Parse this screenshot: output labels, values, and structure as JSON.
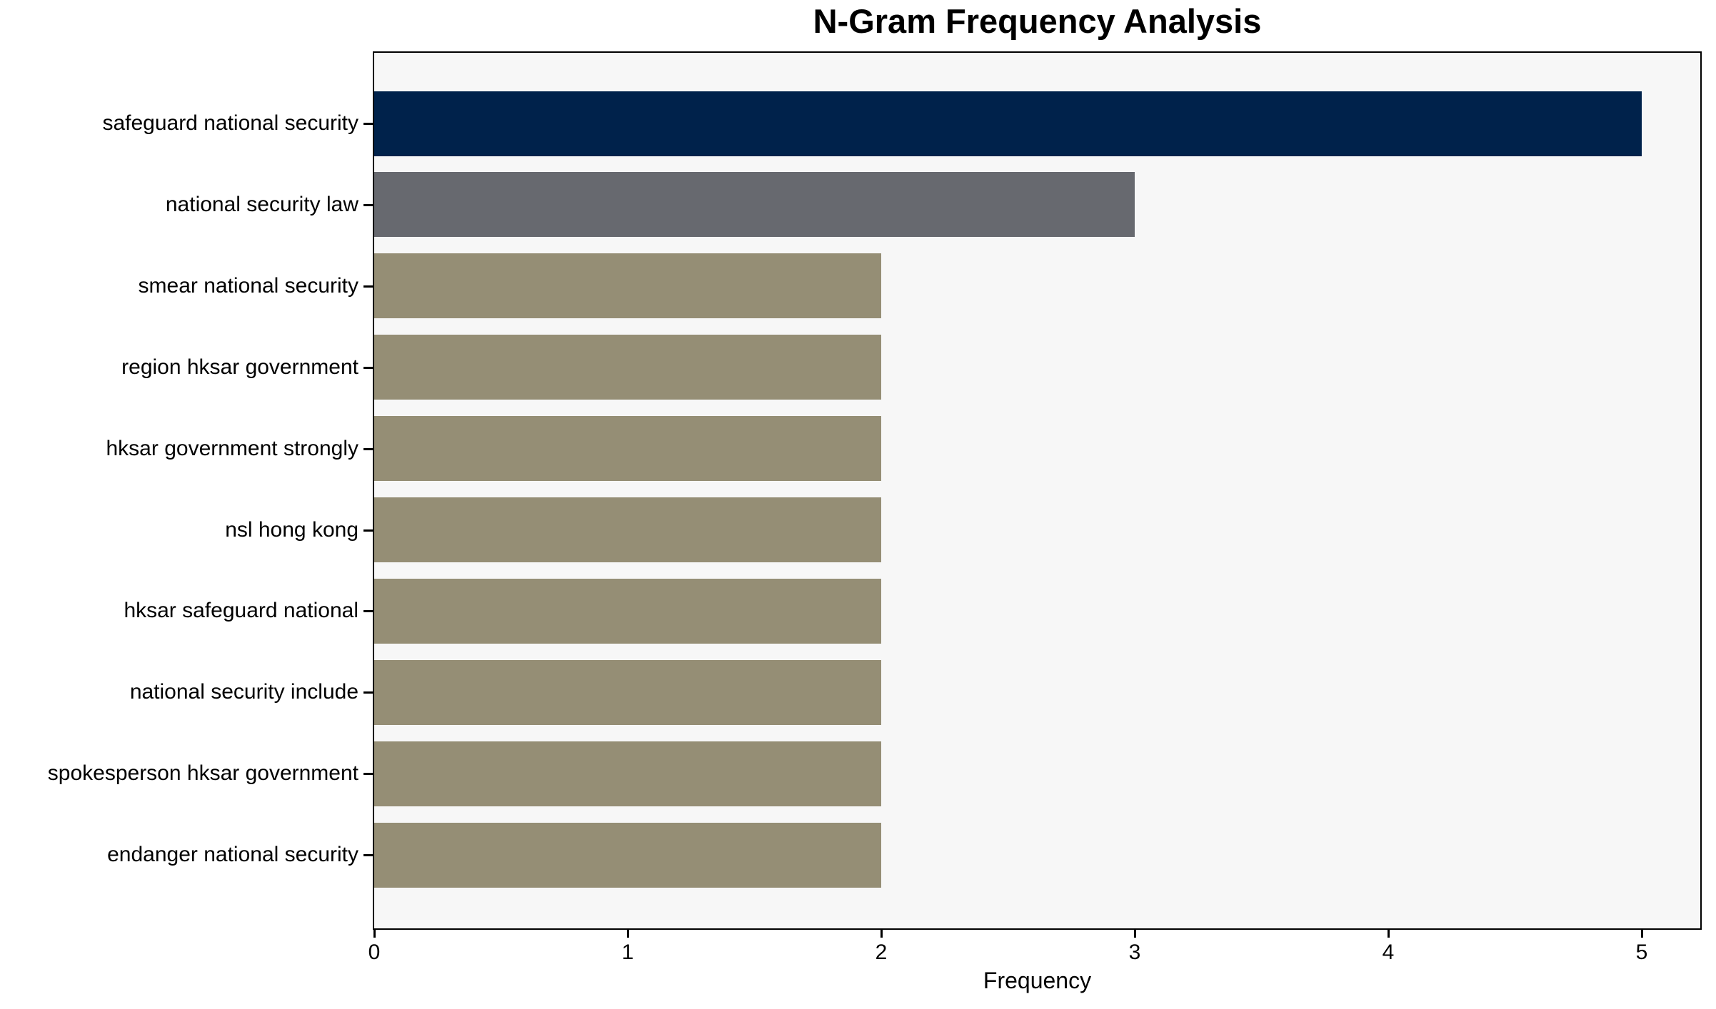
{
  "figure": {
    "background": "#FFFFFF"
  },
  "chart_data": {
    "type": "bar",
    "orientation": "horizontal",
    "title": "N-Gram Frequency Analysis",
    "xlabel": "Frequency",
    "ylabel": "",
    "categories": [
      "safeguard national security",
      "national security law",
      "smear national security",
      "region hksar government",
      "hksar government strongly",
      "nsl hong kong",
      "hksar safeguard national",
      "national security include",
      "spokesperson hksar government",
      "endanger national security"
    ],
    "values": [
      5,
      3,
      2,
      2,
      2,
      2,
      2,
      2,
      2,
      2
    ],
    "bar_colors": [
      "#00224B",
      "#67696F",
      "#958E75",
      "#958E75",
      "#958E75",
      "#958E75",
      "#958E75",
      "#958E75",
      "#958E75",
      "#958E75"
    ],
    "xlim": [
      0,
      5.25
    ],
    "xticks": [
      0,
      1,
      2,
      3,
      4,
      5
    ],
    "xtick_labels": [
      "0",
      "1",
      "2",
      "3",
      "4",
      "5"
    ],
    "grid": false,
    "legend_position": "none",
    "plot_background": "#F7F7F7",
    "axis_color": "#000000"
  }
}
